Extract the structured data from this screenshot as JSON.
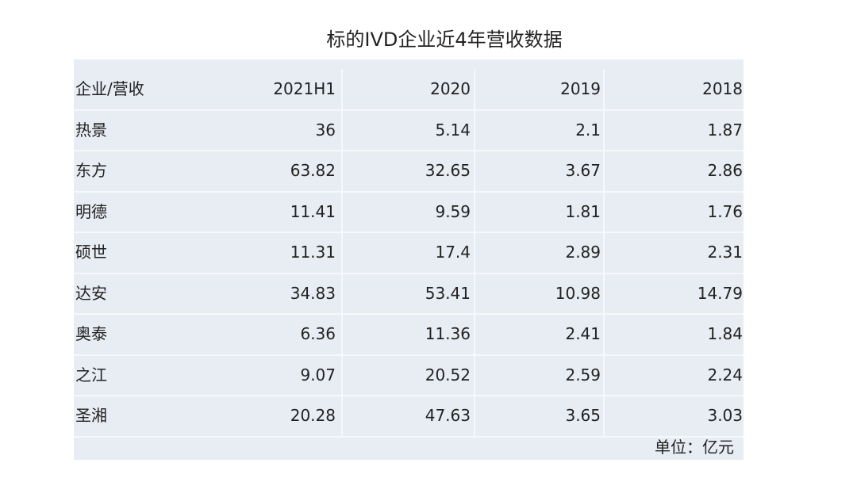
{
  "title": "标的IVD企业近4年营收数据",
  "table": {
    "header": [
      "企业/营收",
      "2021H1",
      "2020",
      "2019",
      "2018"
    ],
    "rows": [
      [
        "热景",
        36,
        5.14,
        2.1,
        1.87
      ],
      [
        "东方",
        63.82,
        32.65,
        3.67,
        2.86
      ],
      [
        "明德",
        11.41,
        9.59,
        1.81,
        1.76
      ],
      [
        "硕世",
        11.31,
        17.4,
        2.89,
        2.31
      ],
      [
        "达安",
        34.83,
        53.41,
        10.98,
        14.79
      ],
      [
        "奥泰",
        6.36,
        11.36,
        2.41,
        1.84
      ],
      [
        "之江",
        9.07,
        20.52,
        2.59,
        2.24
      ],
      [
        "圣湘",
        20.28,
        47.63,
        3.65,
        3.03
      ]
    ],
    "note": "单位：亿元"
  }
}
